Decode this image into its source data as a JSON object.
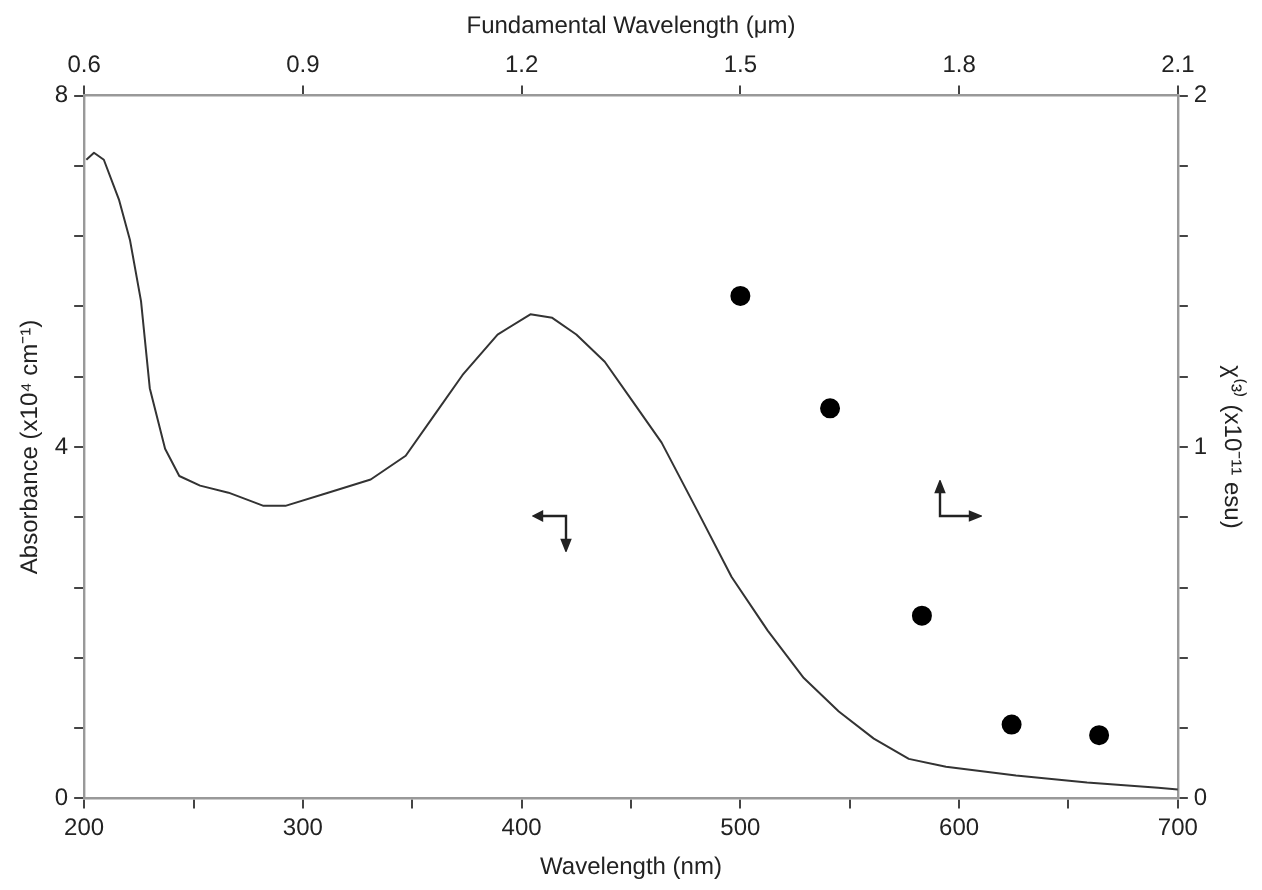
{
  "chart_data": {
    "type": "line",
    "xlabel": "Wavelength (nm)",
    "ylabel": "Absorbance (x10⁴ cm⁻¹)",
    "y2label": "χ⁽³⁾ (x10⁻¹¹ esu)",
    "x2label": "Fundamental Wavelength (μm)",
    "xlim": [
      200,
      700
    ],
    "xticks": [
      200,
      {
        "value": 250,
        "label": null
      },
      300,
      {
        "value": 350,
        "label": null
      },
      400,
      {
        "value": 450,
        "label": null
      },
      500,
      {
        "value": 550,
        "label": null
      },
      600,
      {
        "value": 650,
        "label": null
      },
      700
    ],
    "x2lim": [
      0.6,
      2.1
    ],
    "x2ticks": [
      0.6,
      0.9,
      1.2,
      1.5,
      1.8,
      2.1
    ],
    "ylim": [
      0,
      8
    ],
    "yticks": [
      0,
      {
        "value": 0.8,
        "label": null
      },
      {
        "value": 1.6,
        "label": null
      },
      {
        "value": 2.4,
        "label": null
      },
      {
        "value": 3.2,
        "label": null
      },
      4,
      {
        "value": 4.8,
        "label": null
      },
      {
        "value": 5.6,
        "label": null
      },
      {
        "value": 6.4,
        "label": null
      },
      {
        "value": 7.2,
        "label": null
      },
      8
    ],
    "y2lim": [
      0,
      2
    ],
    "y2ticks": [
      0,
      {
        "value": 0.2,
        "label": null
      },
      {
        "value": 0.4,
        "label": null
      },
      {
        "value": 0.6,
        "label": null
      },
      {
        "value": 0.8,
        "label": null
      },
      1,
      {
        "value": 1.2,
        "label": null
      },
      {
        "value": 1.4,
        "label": null
      },
      {
        "value": 1.6,
        "label": null
      },
      {
        "value": 1.8,
        "label": null
      },
      2
    ],
    "grid": false,
    "legend": false,
    "series": [
      {
        "type": "line",
        "color": "#333333",
        "marker": "none",
        "x": [
          201,
          204.5,
          209,
          216,
          221,
          226,
          230,
          237,
          243.5,
          253,
          266,
          282,
          292,
          311.5,
          331,
          347,
          360,
          373,
          389,
          404,
          414,
          425,
          438,
          451,
          464,
          480,
          496,
          512.5,
          529,
          545,
          561,
          577,
          594,
          626,
          658.5,
          691,
          700
        ],
        "values": [
          7.27,
          7.35,
          7.27,
          6.81,
          6.35,
          5.66,
          4.67,
          3.98,
          3.67,
          3.56,
          3.48,
          3.33,
          3.33,
          3.48,
          3.63,
          3.9,
          4.36,
          4.82,
          5.28,
          5.51,
          5.47,
          5.28,
          4.97,
          4.51,
          4.05,
          3.29,
          2.52,
          1.91,
          1.37,
          0.99,
          0.68,
          0.45,
          0.36,
          0.26,
          0.18,
          0.12,
          0.1
        ]
      },
      {
        "type": "scatter",
        "color": "#000000",
        "marker": "circle",
        "axis": "y2",
        "x": [
          500,
          541,
          583,
          624,
          664
        ],
        "values": [
          1.43,
          1.11,
          0.52,
          0.21,
          0.18
        ]
      }
    ]
  }
}
